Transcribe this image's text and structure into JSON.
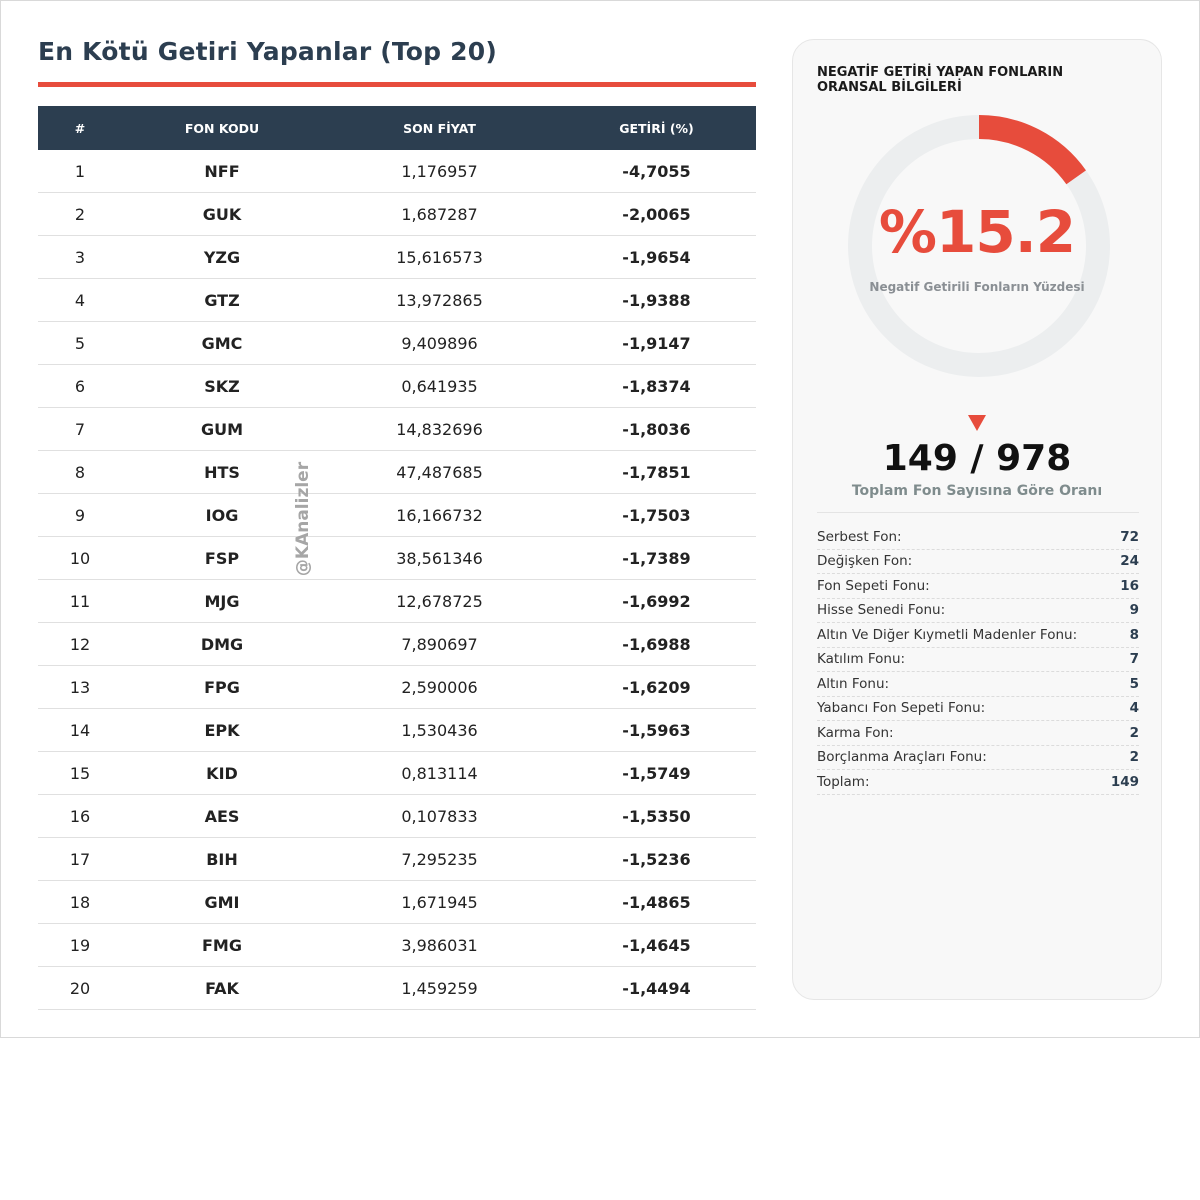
{
  "title": "En Kötü Getiri Yapanlar (Top 20)",
  "table": {
    "headers": [
      "#",
      "FON KODU",
      "SON FİYAT",
      "GETİRİ (%)"
    ],
    "rows": [
      {
        "rank": "1",
        "code": "NFF",
        "price": "1,176957",
        "ret": "-4,7055"
      },
      {
        "rank": "2",
        "code": "GUK",
        "price": "1,687287",
        "ret": "-2,0065"
      },
      {
        "rank": "3",
        "code": "YZG",
        "price": "15,616573",
        "ret": "-1,9654"
      },
      {
        "rank": "4",
        "code": "GTZ",
        "price": "13,972865",
        "ret": "-1,9388"
      },
      {
        "rank": "5",
        "code": "GMC",
        "price": "9,409896",
        "ret": "-1,9147"
      },
      {
        "rank": "6",
        "code": "SKZ",
        "price": "0,641935",
        "ret": "-1,8374"
      },
      {
        "rank": "7",
        "code": "GUM",
        "price": "14,832696",
        "ret": "-1,8036"
      },
      {
        "rank": "8",
        "code": "HTS",
        "price": "47,487685",
        "ret": "-1,7851"
      },
      {
        "rank": "9",
        "code": "IOG",
        "price": "16,166732",
        "ret": "-1,7503"
      },
      {
        "rank": "10",
        "code": "FSP",
        "price": "38,561346",
        "ret": "-1,7389"
      },
      {
        "rank": "11",
        "code": "MJG",
        "price": "12,678725",
        "ret": "-1,6992"
      },
      {
        "rank": "12",
        "code": "DMG",
        "price": "7,890697",
        "ret": "-1,6988"
      },
      {
        "rank": "13",
        "code": "FPG",
        "price": "2,590006",
        "ret": "-1,6209"
      },
      {
        "rank": "14",
        "code": "EPK",
        "price": "1,530436",
        "ret": "-1,5963"
      },
      {
        "rank": "15",
        "code": "KID",
        "price": "0,813114",
        "ret": "-1,5749"
      },
      {
        "rank": "16",
        "code": "AES",
        "price": "0,107833",
        "ret": "-1,5350"
      },
      {
        "rank": "17",
        "code": "BIH",
        "price": "7,295235",
        "ret": "-1,5236"
      },
      {
        "rank": "18",
        "code": "GMI",
        "price": "1,671945",
        "ret": "-1,4865"
      },
      {
        "rank": "19",
        "code": "FMG",
        "price": "3,986031",
        "ret": "-1,4645"
      },
      {
        "rank": "20",
        "code": "FAK",
        "price": "1,459259",
        "ret": "-1,4494"
      }
    ]
  },
  "watermark": "@KAnalizler",
  "panel": {
    "title": "NEGATİF GETİRİ YAPAN FONLARIN ORANSAL BİLGİLERİ",
    "percent_text": "%15.2",
    "percent_value": 15.2,
    "percent_label": "Negatif Getirili Fonların Yüzdesi",
    "ratio": "149 / 978",
    "ratio_label": "Toplam Fon Sayısına Göre Oranı",
    "breakdown": [
      {
        "label": "Serbest Fon:",
        "value": "72"
      },
      {
        "label": "Değişken Fon:",
        "value": "24"
      },
      {
        "label": "Fon Sepeti Fonu:",
        "value": "16"
      },
      {
        "label": "Hisse Senedi Fonu:",
        "value": "9"
      },
      {
        "label": "Altın Ve Diğer Kıymetli Madenler Fonu:",
        "value": "8"
      },
      {
        "label": "Katılım Fonu:",
        "value": "7"
      },
      {
        "label": "Altın Fonu:",
        "value": "5"
      },
      {
        "label": "Yabancı Fon Sepeti Fonu:",
        "value": "4"
      },
      {
        "label": "Karma Fon:",
        "value": "2"
      },
      {
        "label": "Borçlanma Araçları Fonu:",
        "value": "2"
      },
      {
        "label": "Toplam:",
        "value": "149"
      }
    ]
  },
  "colors": {
    "accent_red": "#e74c3c",
    "header_navy": "#2c3e50",
    "code_blue": "#2e86c1",
    "donut_track": "#eceeef"
  }
}
